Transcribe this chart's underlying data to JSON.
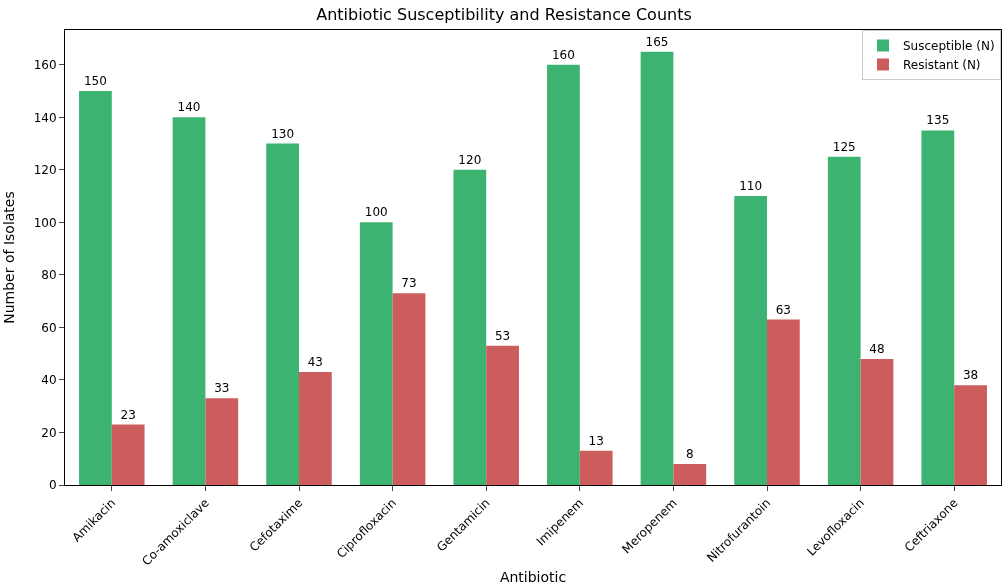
{
  "chart_data": {
    "type": "bar",
    "title": "Antibiotic Susceptibility and Resistance Counts",
    "xlabel": "Antibiotic",
    "ylabel": "Number of Isolates",
    "categories": [
      "Amikacin",
      "Co-amoxiclave",
      "Cefotaxime",
      "Ciprofloxacin",
      "Gentamicin",
      "Imipenem",
      "Meropenem",
      "Nitrofurantoin",
      "Levofloxacin",
      "Ceftriaxone"
    ],
    "series": [
      {
        "name": "Susceptible (N)",
        "color": "#3cb371",
        "values": [
          150,
          140,
          130,
          100,
          120,
          160,
          165,
          110,
          125,
          135
        ]
      },
      {
        "name": "Resistant (N)",
        "color": "#cd5c5c",
        "values": [
          23,
          33,
          43,
          73,
          53,
          13,
          8,
          63,
          48,
          38
        ]
      }
    ],
    "ylim": [
      0,
      173.25
    ],
    "yticks": [
      0,
      20,
      40,
      60,
      80,
      100,
      120,
      140,
      160
    ],
    "data_labels": true,
    "legend": "top right"
  }
}
